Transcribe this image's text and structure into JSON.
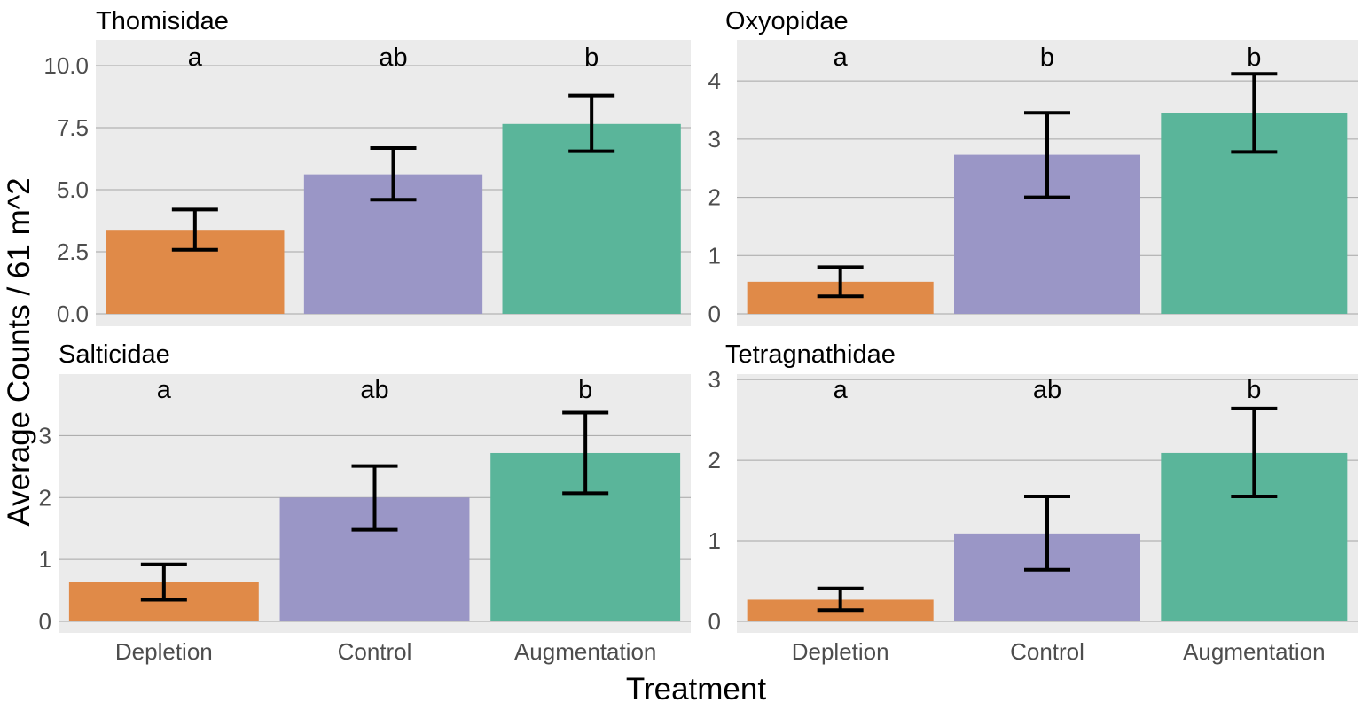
{
  "chart_data": {
    "type": "bar",
    "xlabel": "Treatment",
    "ylabel": "Average Counts / 61 m^2",
    "categories": [
      "Depletion",
      "Control",
      "Augmentation"
    ],
    "colors": [
      "#e08a48",
      "#9a96c6",
      "#5ab59a"
    ],
    "grid": true,
    "legend": "none",
    "panels": [
      {
        "title": "Thomisidae",
        "ylim": [
          0,
          10.5
        ],
        "yticks": [
          "0.0",
          "2.5",
          "5.0",
          "7.5",
          "10.0"
        ],
        "ytick_values": [
          0,
          2.5,
          5,
          7.5,
          10
        ],
        "values": [
          3.35,
          5.62,
          7.65
        ],
        "err_low": [
          2.58,
          4.6,
          6.55
        ],
        "err_high": [
          4.2,
          6.68,
          8.8
        ],
        "letters": [
          "a",
          "ab",
          "b"
        ]
      },
      {
        "title": "Oxyopidae",
        "ylim": [
          0,
          4.2
        ],
        "yticks": [
          "0",
          "1",
          "2",
          "3",
          "4"
        ],
        "ytick_values": [
          0,
          1,
          2,
          3,
          4
        ],
        "values": [
          0.55,
          2.73,
          3.45
        ],
        "err_low": [
          0.3,
          2.0,
          2.78
        ],
        "err_high": [
          0.8,
          3.45,
          4.12
        ],
        "letters": [
          "a",
          "b",
          "b"
        ]
      },
      {
        "title": "Salticidae",
        "ylim": [
          0,
          3.65
        ],
        "yticks": [
          "0",
          "1",
          "2",
          "3"
        ],
        "ytick_values": [
          0,
          1,
          2,
          3
        ],
        "values": [
          0.63,
          2.0,
          2.72
        ],
        "err_low": [
          0.35,
          1.48,
          2.07
        ],
        "err_high": [
          0.92,
          2.51,
          3.37
        ],
        "letters": [
          "a",
          "ab",
          "b"
        ]
      },
      {
        "title": "Tetragnathidae",
        "ylim": [
          0,
          2.87
        ],
        "yticks": [
          "0",
          "1",
          "2",
          "3"
        ],
        "ytick_values": [
          0,
          1,
          2,
          3
        ],
        "values": [
          0.27,
          1.09,
          2.09
        ],
        "err_low": [
          0.14,
          0.64,
          1.55
        ],
        "err_high": [
          0.41,
          1.55,
          2.64
        ],
        "letters": [
          "a",
          "ab",
          "b"
        ]
      }
    ]
  }
}
